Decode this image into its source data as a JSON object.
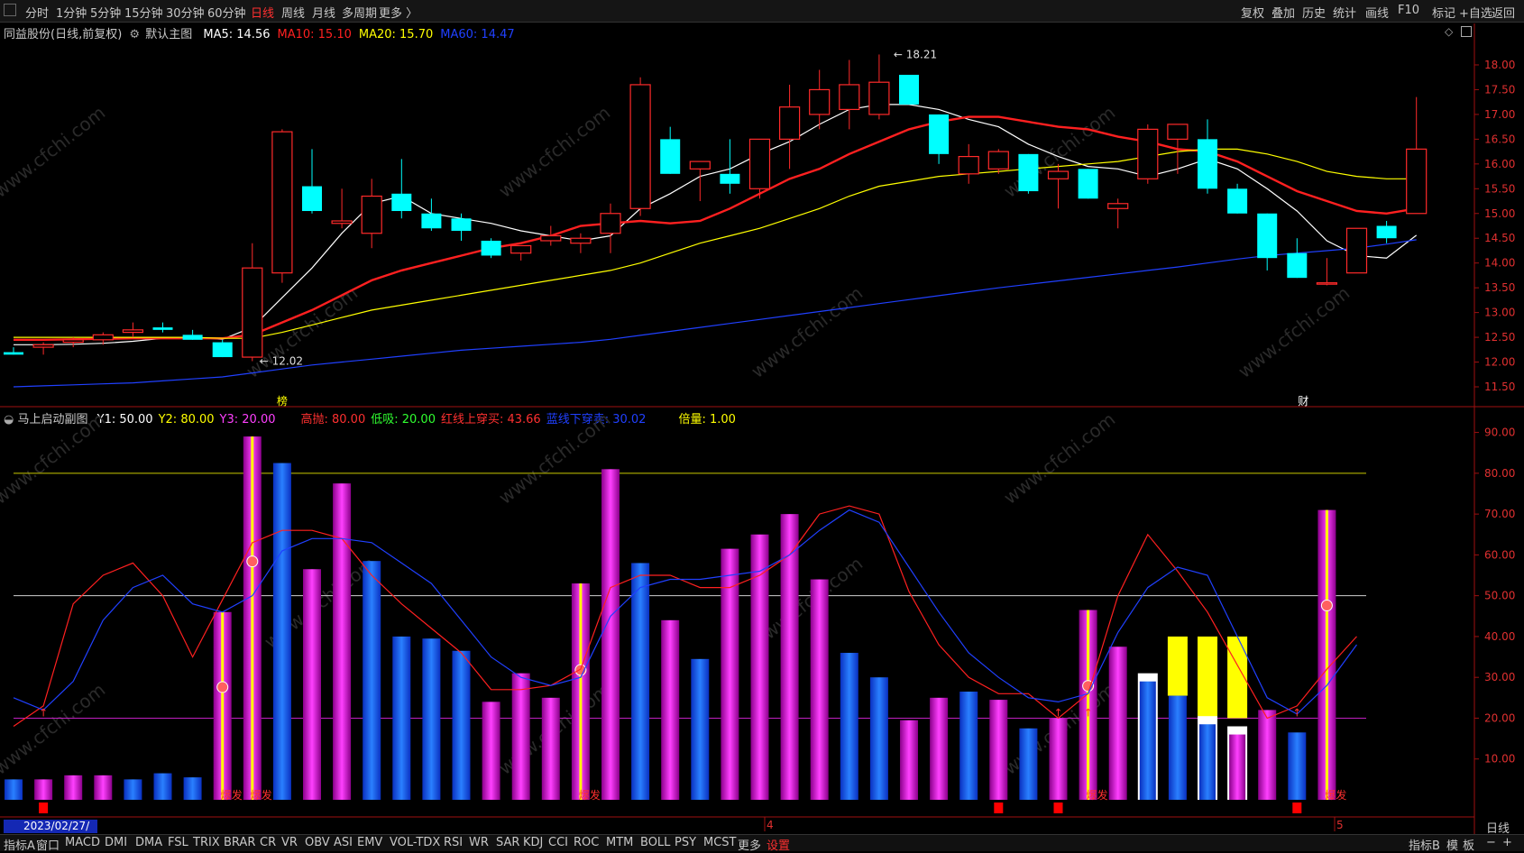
{
  "toolbar": {
    "periods": [
      "分时",
      "1分钟",
      "5分钟",
      "15分钟",
      "30分钟",
      "60分钟",
      "日线",
      "周线",
      "月线",
      "多周期",
      "更多 〉"
    ],
    "active_period": "日线",
    "right_buttons": [
      "复权",
      "叠加",
      "历史",
      "统计",
      "画线",
      "F10",
      "标记",
      "+自选",
      "返回"
    ]
  },
  "main_panel": {
    "stock_title": "同益股份(日线,前复权)",
    "template": "默认主图",
    "ma": [
      {
        "label": "MA5: 14.56",
        "color": "#ffffff"
      },
      {
        "label": "MA10: 15.10",
        "color": "#ff2020"
      },
      {
        "label": "MA20: 15.70",
        "color": "#ffff00"
      },
      {
        "label": "MA60: 14.47",
        "color": "#2040ff"
      }
    ],
    "high_label": "18.21",
    "low_label": "12.02",
    "price_ticks": [
      "18.00",
      "17.50",
      "17.00",
      "16.50",
      "16.00",
      "15.50",
      "15.00",
      "14.50",
      "14.00",
      "13.50",
      "13.00",
      "12.50",
      "12.00",
      "11.50"
    ],
    "marker_bang": "榜",
    "marker_cai": "财"
  },
  "sub_panel": {
    "title": "马上启动副图",
    "params": [
      {
        "label": "Y1: 50.00",
        "color": "#ffffff"
      },
      {
        "label": "Y2: 80.00",
        "color": "#ffff00"
      },
      {
        "label": "Y3: 20.00",
        "color": "#ff40ff"
      },
      {
        "label": "高抛: 80.00",
        "color": "#ff3030"
      },
      {
        "label": "低吸: 20.00",
        "color": "#30ff30"
      },
      {
        "label": "红线上穿买: 43.66",
        "color": "#ff3030"
      },
      {
        "label": "蓝线下穿卖: 30.02",
        "color": "#2040ff"
      },
      {
        "label": "倍量: 1.00",
        "color": "#ffff00"
      }
    ],
    "y_ticks": [
      "90.00",
      "80.00",
      "70.00",
      "60.00",
      "50.00",
      "40.00",
      "30.00",
      "20.00",
      "10.00"
    ],
    "burst_label": "爆发",
    "date_label": "2023/02/27/一",
    "month_marks": [
      "4",
      "5"
    ],
    "period_label": "日线"
  },
  "chart_data": [
    {
      "type": "candlestick",
      "title": "同益股份(日线,前复权)",
      "ylim": [
        11.3,
        18.4
      ],
      "candles": [
        {
          "o": 12.2,
          "h": 12.3,
          "l": 12.15,
          "c": 12.15
        },
        {
          "o": 12.3,
          "h": 12.4,
          "l": 12.15,
          "c": 12.35
        },
        {
          "o": 12.4,
          "h": 12.5,
          "l": 12.3,
          "c": 12.45
        },
        {
          "o": 12.45,
          "h": 12.6,
          "l": 12.35,
          "c": 12.55
        },
        {
          "o": 12.6,
          "h": 12.8,
          "l": 12.5,
          "c": 12.65
        },
        {
          "o": 12.7,
          "h": 12.8,
          "l": 12.6,
          "c": 12.65
        },
        {
          "o": 12.55,
          "h": 12.65,
          "l": 12.45,
          "c": 12.45
        },
        {
          "o": 12.4,
          "h": 12.45,
          "l": 12.1,
          "c": 12.1
        },
        {
          "o": 12.1,
          "h": 14.4,
          "l": 12.02,
          "c": 13.9
        },
        {
          "o": 13.8,
          "h": 16.7,
          "l": 13.6,
          "c": 16.65
        },
        {
          "o": 15.55,
          "h": 16.3,
          "l": 15.0,
          "c": 15.05
        },
        {
          "o": 14.8,
          "h": 15.5,
          "l": 14.7,
          "c": 14.85
        },
        {
          "o": 14.6,
          "h": 15.7,
          "l": 14.3,
          "c": 15.35
        },
        {
          "o": 15.4,
          "h": 16.1,
          "l": 14.9,
          "c": 15.05
        },
        {
          "o": 15.0,
          "h": 15.3,
          "l": 14.65,
          "c": 14.7
        },
        {
          "o": 14.9,
          "h": 15.0,
          "l": 14.45,
          "c": 14.65
        },
        {
          "o": 14.45,
          "h": 14.5,
          "l": 14.1,
          "c": 14.15
        },
        {
          "o": 14.2,
          "h": 14.35,
          "l": 14.05,
          "c": 14.35
        },
        {
          "o": 14.45,
          "h": 14.75,
          "l": 14.35,
          "c": 14.55
        },
        {
          "o": 14.4,
          "h": 14.6,
          "l": 14.2,
          "c": 14.5
        },
        {
          "o": 14.6,
          "h": 15.2,
          "l": 14.2,
          "c": 15.0
        },
        {
          "o": 15.1,
          "h": 17.75,
          "l": 14.95,
          "c": 17.6
        },
        {
          "o": 16.5,
          "h": 16.75,
          "l": 15.8,
          "c": 15.8
        },
        {
          "o": 15.9,
          "h": 16.0,
          "l": 15.25,
          "c": 16.05
        },
        {
          "o": 15.8,
          "h": 16.5,
          "l": 15.4,
          "c": 15.6
        },
        {
          "o": 15.5,
          "h": 16.5,
          "l": 15.3,
          "c": 16.5
        },
        {
          "o": 16.5,
          "h": 17.6,
          "l": 15.9,
          "c": 17.15
        },
        {
          "o": 17.0,
          "h": 17.9,
          "l": 16.7,
          "c": 17.5
        },
        {
          "o": 17.1,
          "h": 18.1,
          "l": 16.7,
          "c": 17.6
        },
        {
          "o": 17.0,
          "h": 18.21,
          "l": 16.9,
          "c": 17.65
        },
        {
          "o": 17.8,
          "h": 17.8,
          "l": 17.2,
          "c": 17.2
        },
        {
          "o": 17.0,
          "h": 17.0,
          "l": 16.0,
          "c": 16.2
        },
        {
          "o": 15.8,
          "h": 16.4,
          "l": 15.6,
          "c": 16.15
        },
        {
          "o": 15.9,
          "h": 16.3,
          "l": 15.8,
          "c": 16.25
        },
        {
          "o": 16.2,
          "h": 16.2,
          "l": 15.4,
          "c": 15.45
        },
        {
          "o": 15.7,
          "h": 16.0,
          "l": 15.1,
          "c": 15.85
        },
        {
          "o": 15.9,
          "h": 15.9,
          "l": 15.3,
          "c": 15.3
        },
        {
          "o": 15.1,
          "h": 15.3,
          "l": 14.7,
          "c": 15.2
        },
        {
          "o": 15.7,
          "h": 16.8,
          "l": 15.6,
          "c": 16.7
        },
        {
          "o": 16.5,
          "h": 16.8,
          "l": 15.8,
          "c": 16.8
        },
        {
          "o": 16.5,
          "h": 16.9,
          "l": 15.4,
          "c": 15.5
        },
        {
          "o": 15.5,
          "h": 15.6,
          "l": 15.0,
          "c": 15.0
        },
        {
          "o": 15.0,
          "h": 15.0,
          "l": 13.85,
          "c": 14.1
        },
        {
          "o": 14.2,
          "h": 14.5,
          "l": 13.7,
          "c": 13.7
        },
        {
          "o": 13.6,
          "h": 14.1,
          "l": 13.55,
          "c": 13.6
        },
        {
          "o": 13.8,
          "h": 14.7,
          "l": 13.8,
          "c": 14.7
        },
        {
          "o": 14.75,
          "h": 14.85,
          "l": 14.4,
          "c": 14.5
        },
        {
          "o": 15.0,
          "h": 17.35,
          "l": 15.0,
          "c": 16.3
        }
      ],
      "series": [
        {
          "name": "MA5",
          "color": "#ffffff",
          "values": [
            12.35,
            12.35,
            12.36,
            12.38,
            12.42,
            12.48,
            12.5,
            12.46,
            12.7,
            13.3,
            13.9,
            14.6,
            15.2,
            15.35,
            15.0,
            14.9,
            14.8,
            14.65,
            14.55,
            14.45,
            14.55,
            15.1,
            15.4,
            15.75,
            15.9,
            16.2,
            16.45,
            16.8,
            17.1,
            17.2,
            17.2,
            17.1,
            16.9,
            16.75,
            16.4,
            16.15,
            15.95,
            15.9,
            15.75,
            15.9,
            16.1,
            15.9,
            15.5,
            15.05,
            14.45,
            14.15,
            14.1,
            14.56
          ]
        },
        {
          "name": "MA10",
          "color": "#ff2020",
          "values": [
            12.45,
            12.45,
            12.46,
            12.47,
            12.48,
            12.48,
            12.48,
            12.48,
            12.55,
            12.8,
            13.05,
            13.35,
            13.65,
            13.85,
            14.0,
            14.15,
            14.3,
            14.4,
            14.55,
            14.75,
            14.8,
            14.85,
            14.8,
            14.85,
            15.1,
            15.4,
            15.7,
            15.9,
            16.2,
            16.45,
            16.7,
            16.85,
            16.95,
            16.95,
            16.85,
            16.75,
            16.7,
            16.55,
            16.45,
            16.3,
            16.25,
            16.05,
            15.75,
            15.45,
            15.25,
            15.05,
            15.0,
            15.1
          ]
        },
        {
          "name": "MA20",
          "color": "#ffff00",
          "values": [
            12.5,
            12.5,
            12.5,
            12.5,
            12.5,
            12.5,
            12.5,
            12.48,
            12.48,
            12.6,
            12.75,
            12.9,
            13.05,
            13.15,
            13.25,
            13.35,
            13.45,
            13.55,
            13.65,
            13.75,
            13.85,
            14.0,
            14.2,
            14.4,
            14.55,
            14.7,
            14.9,
            15.1,
            15.35,
            15.55,
            15.65,
            15.75,
            15.8,
            15.85,
            15.9,
            15.95,
            16.0,
            16.05,
            16.15,
            16.25,
            16.3,
            16.3,
            16.2,
            16.05,
            15.85,
            15.75,
            15.7,
            15.7
          ]
        },
        {
          "name": "MA60",
          "color": "#2040ff",
          "values": [
            11.5,
            11.52,
            11.54,
            11.56,
            11.58,
            11.62,
            11.66,
            11.7,
            11.78,
            11.86,
            11.94,
            12.0,
            12.06,
            12.12,
            12.18,
            12.24,
            12.28,
            12.32,
            12.36,
            12.4,
            12.46,
            12.54,
            12.62,
            12.7,
            12.78,
            12.86,
            12.94,
            13.02,
            13.1,
            13.18,
            13.26,
            13.34,
            13.42,
            13.5,
            13.57,
            13.64,
            13.71,
            13.78,
            13.85,
            13.92,
            14.0,
            14.08,
            14.15,
            14.2,
            14.25,
            14.3,
            14.38,
            14.47
          ]
        }
      ]
    },
    {
      "type": "bar",
      "title": "马上启动副图",
      "ylim": [
        0,
        93
      ],
      "values": [
        5,
        5,
        6,
        6,
        5,
        6.5,
        5.5,
        46,
        89,
        82.5,
        56.5,
        77.5,
        58.5,
        40,
        39.5,
        36.5,
        24,
        31,
        25,
        53,
        81,
        58,
        44,
        34.5,
        61.5,
        65,
        70,
        54,
        36,
        30,
        19.5,
        25,
        26.5,
        24.5,
        17.5,
        20,
        46.5,
        37.5,
        29,
        25.5,
        18.5,
        16,
        22,
        16.5,
        71
      ],
      "bar_colors": [
        "b",
        "m",
        "m",
        "m",
        "b",
        "b",
        "b",
        "m",
        "m",
        "b",
        "m",
        "m",
        "b",
        "b",
        "b",
        "b",
        "m",
        "m",
        "m",
        "m",
        "m",
        "b",
        "m",
        "b",
        "m",
        "m",
        "m",
        "m",
        "b",
        "b",
        "m",
        "m",
        "b",
        "m",
        "b",
        "m",
        "m",
        "m",
        "b",
        "b",
        "b",
        "m",
        "m",
        "b",
        "m"
      ],
      "yellow_tops": [
        [
          0,
          0
        ],
        [
          0,
          0
        ],
        [
          0,
          0
        ],
        [
          0,
          0
        ],
        [
          0,
          0
        ],
        [
          0,
          0
        ],
        [
          0,
          0
        ],
        [
          0,
          0
        ],
        [
          0,
          0
        ],
        [
          0,
          0
        ],
        [
          0,
          0
        ],
        [
          0,
          0
        ],
        [
          0,
          0
        ],
        [
          0,
          0
        ],
        [
          0,
          0
        ],
        [
          0,
          0
        ],
        [
          0,
          0
        ],
        [
          0,
          0
        ],
        [
          0,
          0
        ],
        [
          0,
          0
        ],
        [
          0,
          0
        ],
        [
          0,
          0
        ],
        [
          0,
          0
        ],
        [
          0,
          0
        ],
        [
          0,
          0
        ],
        [
          0,
          0
        ],
        [
          0,
          0
        ],
        [
          0,
          0
        ],
        [
          0,
          0
        ],
        [
          0,
          0
        ],
        [
          0,
          0
        ],
        [
          0,
          0
        ],
        [
          0,
          0
        ],
        [
          0,
          0
        ],
        [
          0,
          0
        ],
        [
          0,
          0
        ],
        [
          0,
          0
        ],
        [
          0,
          0
        ],
        [
          0,
          0
        ],
        [
          40,
          25.5
        ],
        [
          40,
          20
        ],
        [
          40,
          20
        ],
        [
          0,
          0
        ],
        [
          0,
          0
        ],
        [
          0,
          0
        ]
      ],
      "white_caps": [
        38,
        40,
        41
      ],
      "burst_bars": [
        7,
        8,
        19,
        36,
        44
      ],
      "series": [
        {
          "name": "红线",
          "color": "#ff2020",
          "values": [
            18,
            23,
            48,
            55,
            58,
            50,
            35,
            49,
            63,
            66,
            66,
            64,
            55,
            48,
            42,
            36,
            27,
            27,
            28,
            32,
            52,
            55,
            55,
            52,
            52,
            55,
            60,
            70,
            72,
            70,
            51,
            38,
            30,
            26,
            26,
            20,
            26,
            50,
            65,
            56,
            46,
            33,
            20,
            23,
            32,
            40
          ]
        },
        {
          "name": "蓝线",
          "color": "#2040ff",
          "values": [
            25,
            22,
            29,
            44,
            52,
            55,
            48,
            46,
            50,
            61,
            64,
            64,
            63,
            58,
            53,
            44,
            35,
            30,
            28,
            30,
            45,
            52,
            54,
            54,
            55,
            56,
            60,
            66,
            71,
            68,
            57,
            46,
            36,
            30,
            25,
            24,
            26,
            41,
            52,
            57,
            55,
            40,
            25,
            21,
            28,
            38
          ]
        }
      ],
      "reference_lines": [
        80,
        50,
        20
      ]
    }
  ]
}
